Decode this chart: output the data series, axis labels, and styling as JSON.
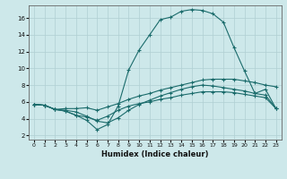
{
  "xlabel": "Humidex (Indice chaleur)",
  "bg_color": "#cde8ea",
  "grid_color": "#b0cfd2",
  "line_color": "#1a6b6b",
  "xlim": [
    -0.5,
    23.5
  ],
  "ylim": [
    1.5,
    17.5
  ],
  "xticks": [
    0,
    1,
    2,
    3,
    4,
    5,
    6,
    7,
    8,
    9,
    10,
    11,
    12,
    13,
    14,
    15,
    16,
    17,
    18,
    19,
    20,
    21,
    22,
    23
  ],
  "yticks": [
    2,
    4,
    6,
    8,
    10,
    12,
    14,
    16
  ],
  "line_main_x": [
    0,
    1,
    2,
    3,
    4,
    5,
    6,
    7,
    8,
    9,
    10,
    11,
    12,
    13,
    14,
    15,
    16,
    17,
    18,
    19,
    20,
    21,
    22,
    23
  ],
  "line_main_y": [
    5.7,
    5.6,
    5.1,
    4.9,
    4.4,
    3.8,
    2.7,
    3.3,
    5.5,
    9.8,
    12.2,
    14.0,
    15.8,
    16.1,
    16.8,
    17.0,
    16.9,
    16.5,
    15.5,
    12.5,
    9.7,
    7.0,
    7.5,
    5.2
  ],
  "line_upper_x": [
    0,
    1,
    2,
    3,
    4,
    5,
    6,
    7,
    8,
    9,
    10,
    11,
    12,
    13,
    14,
    15,
    16,
    17,
    18,
    19,
    20,
    21,
    22,
    23
  ],
  "line_upper_y": [
    5.7,
    5.6,
    5.1,
    5.2,
    5.2,
    5.3,
    5.0,
    5.4,
    5.8,
    6.3,
    6.7,
    7.0,
    7.4,
    7.7,
    8.0,
    8.3,
    8.6,
    8.7,
    8.7,
    8.7,
    8.5,
    8.3,
    8.0,
    7.8
  ],
  "line_mid_x": [
    0,
    1,
    2,
    3,
    4,
    5,
    6,
    7,
    8,
    9,
    10,
    11,
    12,
    13,
    14,
    15,
    16,
    17,
    18,
    19,
    20,
    21,
    22,
    23
  ],
  "line_mid_y": [
    5.7,
    5.6,
    5.1,
    5.0,
    4.8,
    4.3,
    3.7,
    3.5,
    4.1,
    5.0,
    5.7,
    6.2,
    6.7,
    7.1,
    7.5,
    7.8,
    8.0,
    7.9,
    7.7,
    7.5,
    7.3,
    7.0,
    6.8,
    5.2
  ],
  "line_lower_x": [
    0,
    1,
    2,
    3,
    4,
    5,
    6,
    7,
    8,
    9,
    10,
    11,
    12,
    13,
    14,
    15,
    16,
    17,
    18,
    19,
    20,
    21,
    22,
    23
  ],
  "line_lower_y": [
    5.7,
    5.6,
    5.1,
    4.9,
    4.4,
    4.2,
    3.8,
    4.3,
    5.0,
    5.5,
    5.8,
    6.0,
    6.3,
    6.5,
    6.8,
    7.0,
    7.2,
    7.2,
    7.2,
    7.1,
    6.9,
    6.7,
    6.5,
    5.2
  ]
}
